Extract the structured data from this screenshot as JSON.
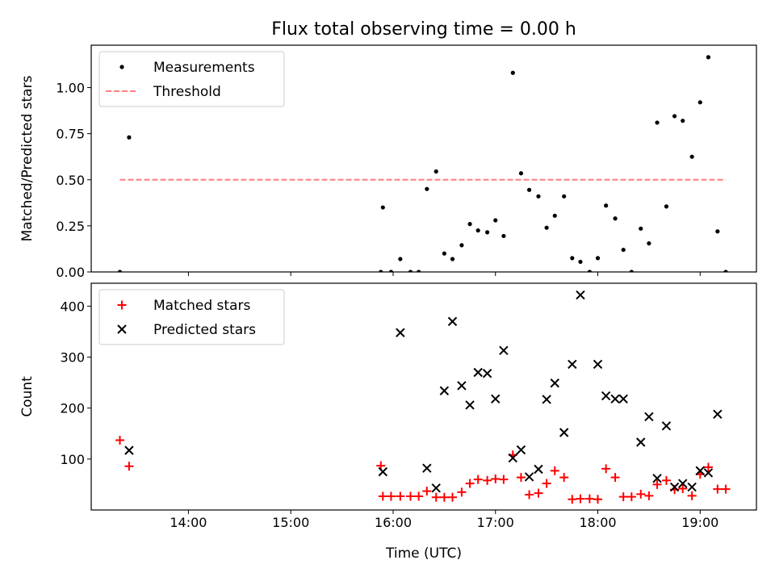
{
  "title": "Flux total observing time = 0.00 h",
  "x_axis": {
    "label": "Time (UTC)",
    "unit": "hours",
    "range": [
      13.05,
      19.55
    ],
    "ticks": [
      {
        "value": 14,
        "label": "14:00"
      },
      {
        "value": 15,
        "label": "15:00"
      },
      {
        "value": 16,
        "label": "16:00"
      },
      {
        "value": 17,
        "label": "17:00"
      },
      {
        "value": 18,
        "label": "18:00"
      },
      {
        "value": 19,
        "label": "19:00"
      }
    ]
  },
  "chart_data": [
    {
      "type": "scatter",
      "panel": "top",
      "ylabel": "Matched/Predicted stars",
      "ylim": [
        0,
        1.23
      ],
      "yticks": [
        {
          "value": 0,
          "label": "0.00"
        },
        {
          "value": 0.25,
          "label": "0.25"
        },
        {
          "value": 0.5,
          "label": "0.50"
        },
        {
          "value": 0.75,
          "label": "0.75"
        },
        {
          "value": 1.0,
          "label": "1.00"
        }
      ],
      "legend": {
        "placement": "upper-left",
        "entries": [
          "Measurements",
          "Threshold"
        ]
      },
      "series": [
        {
          "name": "Measurements",
          "kind": "points",
          "color": "#000000",
          "points": [
            [
              13.33,
              0.0
            ],
            [
              13.42,
              0.73
            ],
            [
              15.88,
              0.0
            ],
            [
              15.9,
              0.35
            ],
            [
              15.98,
              0.0
            ],
            [
              16.07,
              0.07
            ],
            [
              16.17,
              0.0
            ],
            [
              16.25,
              0.0
            ],
            [
              16.33,
              0.45
            ],
            [
              16.42,
              0.545
            ],
            [
              16.5,
              0.1
            ],
            [
              16.58,
              0.07
            ],
            [
              16.67,
              0.145
            ],
            [
              16.75,
              0.26
            ],
            [
              16.83,
              0.225
            ],
            [
              16.92,
              0.215
            ],
            [
              17.0,
              0.28
            ],
            [
              17.08,
              0.195
            ],
            [
              17.17,
              1.08
            ],
            [
              17.25,
              0.535
            ],
            [
              17.33,
              0.445
            ],
            [
              17.42,
              0.41
            ],
            [
              17.5,
              0.24
            ],
            [
              17.58,
              0.305
            ],
            [
              17.67,
              0.41
            ],
            [
              17.75,
              0.075
            ],
            [
              17.83,
              0.055
            ],
            [
              17.92,
              0.0
            ],
            [
              18.0,
              0.075
            ],
            [
              18.08,
              0.36
            ],
            [
              18.17,
              0.29
            ],
            [
              18.25,
              0.12
            ],
            [
              18.33,
              0.0
            ],
            [
              18.42,
              0.235
            ],
            [
              18.5,
              0.155
            ],
            [
              18.58,
              0.81
            ],
            [
              18.67,
              0.355
            ],
            [
              18.75,
              0.845
            ],
            [
              18.83,
              0.82
            ],
            [
              18.92,
              0.625
            ],
            [
              19.0,
              0.92
            ],
            [
              19.08,
              1.165
            ],
            [
              19.17,
              0.22
            ],
            [
              19.25,
              0.0
            ]
          ]
        },
        {
          "name": "Threshold",
          "kind": "dashed-line",
          "color": "#ff7f7f",
          "points": [
            [
              13.33,
              0.5
            ],
            [
              19.25,
              0.5
            ]
          ]
        }
      ]
    },
    {
      "type": "scatter",
      "panel": "bottom",
      "ylabel": "Count",
      "ylim": [
        0,
        445
      ],
      "yticks": [
        {
          "value": 100,
          "label": "100"
        },
        {
          "value": 200,
          "label": "200"
        },
        {
          "value": 300,
          "label": "300"
        },
        {
          "value": 400,
          "label": "400"
        }
      ],
      "legend": {
        "placement": "upper-left",
        "entries": [
          "Matched stars",
          "Predicted stars"
        ]
      },
      "series": [
        {
          "name": "Matched stars",
          "marker": "plus",
          "color": "#ff0000",
          "points": [
            [
              13.33,
              137
            ],
            [
              13.42,
              86
            ],
            [
              15.88,
              87
            ],
            [
              15.9,
              27
            ],
            [
              15.98,
              27
            ],
            [
              16.07,
              27
            ],
            [
              16.17,
              27
            ],
            [
              16.25,
              27
            ],
            [
              16.33,
              37
            ],
            [
              16.42,
              25
            ],
            [
              16.5,
              25
            ],
            [
              16.58,
              25
            ],
            [
              16.67,
              35
            ],
            [
              16.75,
              52
            ],
            [
              16.83,
              60
            ],
            [
              16.92,
              58
            ],
            [
              17.0,
              61
            ],
            [
              17.08,
              60
            ],
            [
              17.17,
              108
            ],
            [
              17.25,
              64
            ],
            [
              17.33,
              30
            ],
            [
              17.42,
              33
            ],
            [
              17.5,
              52
            ],
            [
              17.58,
              77
            ],
            [
              17.67,
              64
            ],
            [
              17.75,
              21
            ],
            [
              17.83,
              22
            ],
            [
              17.92,
              22
            ],
            [
              18.0,
              21
            ],
            [
              18.08,
              81
            ],
            [
              18.17,
              64
            ],
            [
              18.25,
              26
            ],
            [
              18.33,
              26
            ],
            [
              18.42,
              31
            ],
            [
              18.5,
              28
            ],
            [
              18.58,
              50
            ],
            [
              18.67,
              58
            ],
            [
              18.75,
              40
            ],
            [
              18.83,
              42
            ],
            [
              18.92,
              28
            ],
            [
              19.0,
              70
            ],
            [
              19.08,
              84
            ],
            [
              19.17,
              41
            ],
            [
              19.25,
              41
            ]
          ]
        },
        {
          "name": "Predicted stars",
          "marker": "x",
          "color": "#000000",
          "points": [
            [
              13.42,
              117
            ],
            [
              15.9,
              75
            ],
            [
              16.07,
              348
            ],
            [
              16.33,
              82
            ],
            [
              16.42,
              43
            ],
            [
              16.5,
              234
            ],
            [
              16.58,
              370
            ],
            [
              16.67,
              244
            ],
            [
              16.75,
              206
            ],
            [
              16.83,
              270
            ],
            [
              16.92,
              268
            ],
            [
              17.0,
              218
            ],
            [
              17.08,
              313
            ],
            [
              17.17,
              102
            ],
            [
              17.25,
              118
            ],
            [
              17.33,
              65
            ],
            [
              17.42,
              80
            ],
            [
              17.5,
              217
            ],
            [
              17.58,
              249
            ],
            [
              17.67,
              152
            ],
            [
              17.75,
              286
            ],
            [
              17.83,
              422
            ],
            [
              18.0,
              286
            ],
            [
              18.08,
              224
            ],
            [
              18.17,
              218
            ],
            [
              18.25,
              218
            ],
            [
              18.42,
              133
            ],
            [
              18.5,
              183
            ],
            [
              18.58,
              62
            ],
            [
              18.67,
              165
            ],
            [
              18.75,
              45
            ],
            [
              18.83,
              52
            ],
            [
              18.92,
              45
            ],
            [
              19.0,
              77
            ],
            [
              19.08,
              73
            ],
            [
              19.17,
              188
            ]
          ]
        }
      ]
    }
  ]
}
